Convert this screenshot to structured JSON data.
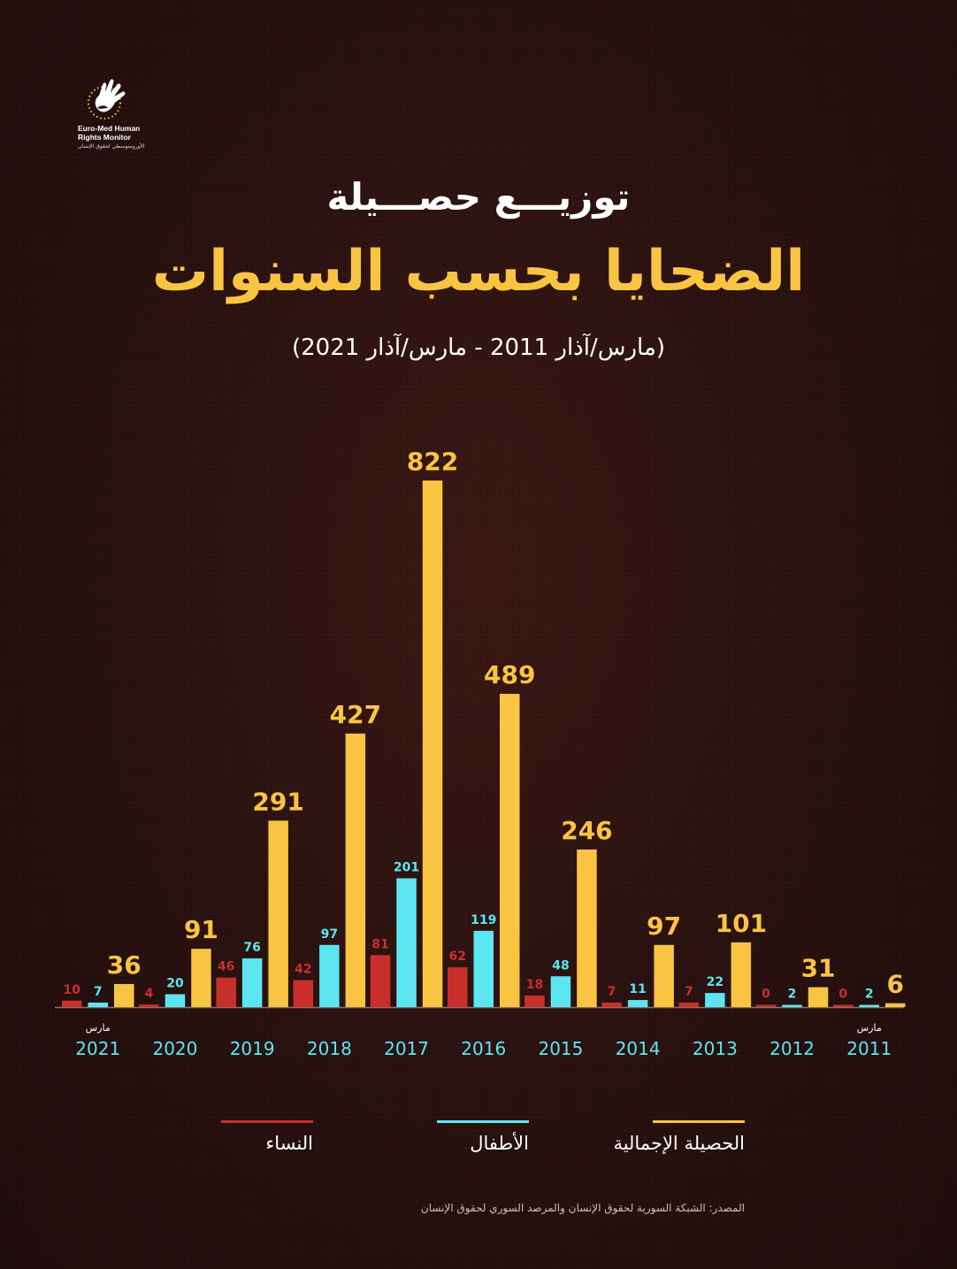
{
  "logo": {
    "icon": "hand-dove-logo-icon",
    "line1": "Euro-Med Human",
    "line2": "Rights Monitor",
    "arabic": "الأورومتوسطي لحقوق الإنسان"
  },
  "title_line1": "توزيـــع حصـــيلة",
  "title_line2": "الضحايا بحسب السنوات",
  "subtitle": "(مارس/آذار 2011 - مارس/آذار 2021)",
  "colors": {
    "women": "#c9302c",
    "children": "#5ce6f2",
    "total": "#f9c442",
    "title_accent": "#f9c442"
  },
  "chart_data": {
    "type": "bar",
    "title": "الضحايا بحسب السنوات",
    "categories": [
      "2021",
      "2020",
      "2019",
      "2018",
      "2017",
      "2016",
      "2015",
      "2014",
      "2013",
      "2012",
      "2011"
    ],
    "category_notes": {
      "2021": "مارس",
      "2011": "مارس"
    },
    "series": [
      {
        "name": "النساء",
        "color": "#c9302c",
        "values": [
          10,
          4,
          46,
          42,
          81,
          62,
          18,
          7,
          7,
          0,
          0
        ]
      },
      {
        "name": "الأطفال",
        "color": "#5ce6f2",
        "values": [
          7,
          20,
          76,
          97,
          201,
          119,
          48,
          11,
          22,
          2,
          2
        ]
      },
      {
        "name": "الحصيلة الإجمالية",
        "color": "#f9c442",
        "values": [
          36,
          91,
          291,
          427,
          822,
          489,
          246,
          97,
          101,
          31,
          6
        ]
      }
    ],
    "ylim": [
      0,
      822
    ],
    "grid": false,
    "legend_position": "bottom"
  },
  "legend": [
    {
      "label": "الحصيلة الإجمالية",
      "color": "#f9c442"
    },
    {
      "label": "الأطفال",
      "color": "#5ce6f2"
    },
    {
      "label": "النساء",
      "color": "#c9302c"
    }
  ],
  "source": "المصدر: الشبكة السورية لحقوق الإنسان والمرصد السوري لحقوق الإنسان"
}
